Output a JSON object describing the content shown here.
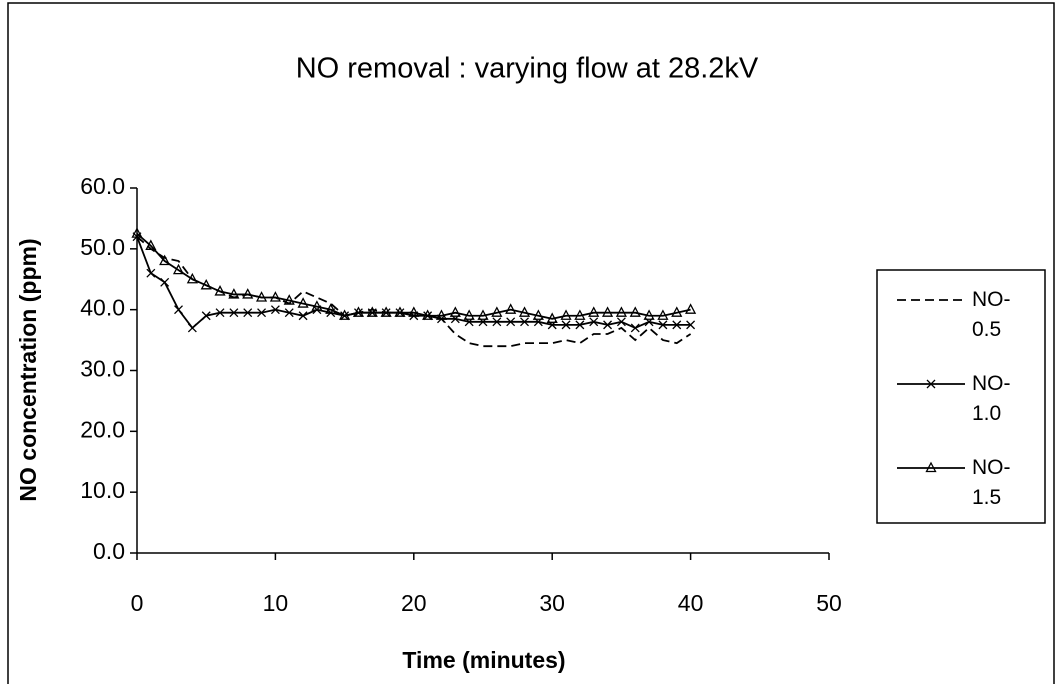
{
  "chart_data": {
    "type": "line",
    "title": "NO removal : varying flow at 28.2kV",
    "x_label": "Time (minutes)",
    "y_label": "NO concentration (ppm)",
    "x": [
      0,
      1,
      2,
      3,
      4,
      5,
      6,
      7,
      8,
      9,
      10,
      11,
      12,
      13,
      14,
      15,
      16,
      17,
      18,
      19,
      20,
      21,
      22,
      23,
      24,
      25,
      26,
      27,
      28,
      29,
      30,
      31,
      32,
      33,
      34,
      35,
      36,
      37,
      38,
      39,
      40
    ],
    "series": [
      {
        "name": "NO-0.5",
        "color": "#000000",
        "dash": true,
        "marker": "none",
        "values": [
          52,
          50,
          48.5,
          48,
          45,
          44,
          43,
          42,
          42.5,
          42,
          42,
          41,
          43,
          42,
          41,
          39,
          39.5,
          40,
          39.5,
          39.5,
          39,
          39,
          38.5,
          36,
          34.5,
          34,
          34,
          34,
          34.5,
          34.5,
          34.5,
          35,
          34.5,
          36,
          36,
          37,
          35,
          37,
          35,
          34.5,
          36
        ]
      },
      {
        "name": "NO-1.0",
        "color": "#000000",
        "dash": false,
        "marker": "x",
        "values": [
          52,
          46,
          44.5,
          40,
          37,
          39,
          39.5,
          39.5,
          39.5,
          39.5,
          40,
          39.5,
          39,
          40,
          39.5,
          39,
          39.5,
          39.5,
          39.5,
          39.5,
          39,
          39,
          38.5,
          38.5,
          38,
          38,
          38,
          38,
          38,
          38,
          37.5,
          37.5,
          37.5,
          38,
          37.5,
          38,
          37,
          38,
          37.5,
          37.5,
          37.5
        ]
      },
      {
        "name": "NO-1.5",
        "color": "#000000",
        "dash": false,
        "marker": "triangle",
        "values": [
          52.5,
          50.5,
          48,
          46.5,
          45,
          44,
          43,
          42.5,
          42.5,
          42,
          42,
          41.5,
          41,
          40.5,
          40,
          39,
          39.5,
          39.5,
          39.5,
          39.5,
          39.5,
          39,
          39,
          39.5,
          39,
          39,
          39.5,
          40,
          39.5,
          39,
          38.5,
          39,
          39,
          39.5,
          39.5,
          39.5,
          39.5,
          39,
          39,
          39.5,
          40
        ]
      }
    ],
    "xlim": [
      0,
      50
    ],
    "xticks": [
      0,
      10,
      20,
      30,
      40,
      50
    ],
    "ylim": [
      0,
      60
    ],
    "yticks": [
      {
        "value": 0,
        "label": "0.0"
      },
      {
        "value": 10,
        "label": "10.0"
      },
      {
        "value": 20,
        "label": "20.0"
      },
      {
        "value": 30,
        "label": "30.0"
      },
      {
        "value": 40,
        "label": "40.0"
      },
      {
        "value": 50,
        "label": "50.0"
      },
      {
        "value": 60,
        "label": "60.0"
      }
    ],
    "grid": false,
    "legend": "right"
  }
}
